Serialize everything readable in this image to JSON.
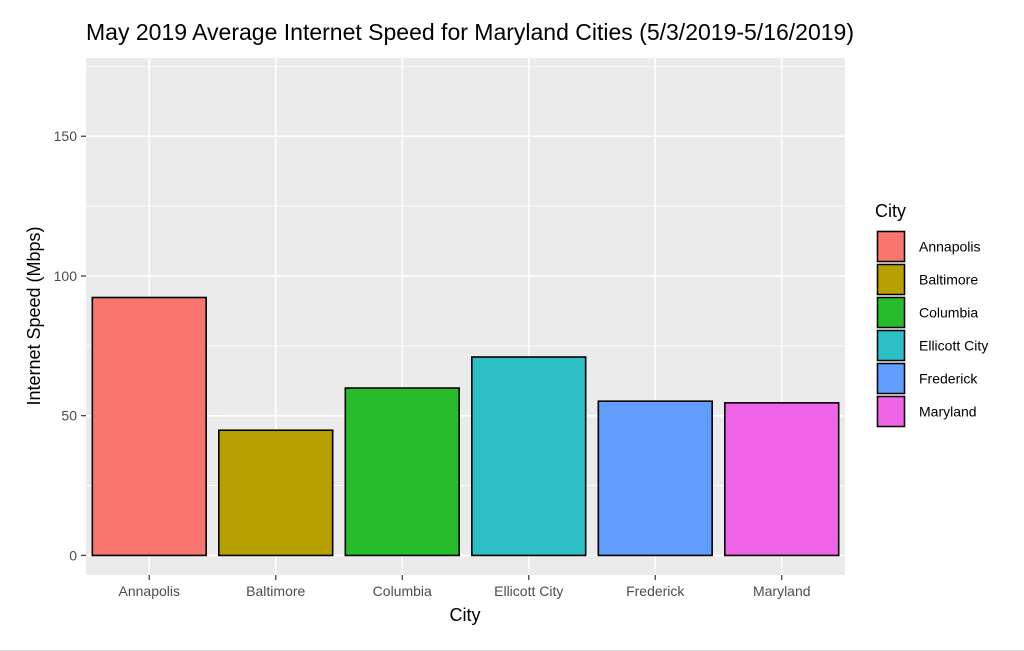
{
  "chart_data": {
    "type": "bar",
    "title": "May 2019 Average Internet Speed for Maryland Cities (5/3/2019-5/16/2019)",
    "xlabel": "City",
    "ylabel": "Internet Speed (Mbps)",
    "categories": [
      "Annapolis",
      "Baltimore",
      "Columbia",
      "Ellicott City",
      "Frederick",
      "Maryland"
    ],
    "values": [
      92.3,
      44.8,
      59.9,
      71.0,
      55.2,
      54.6
    ],
    "colors": [
      "#F8766D",
      "#B79F00",
      "#27BD2A",
      "#2CBFC6",
      "#619CFF",
      "#F064E8"
    ],
    "ylim": [
      -7,
      178
    ],
    "yticks": [
      0,
      50,
      100,
      150
    ],
    "grid": true,
    "legend": {
      "title": "City",
      "position": "right",
      "entries": [
        "Annapolis",
        "Baltimore",
        "Columbia",
        "Ellicott City",
        "Frederick",
        "Maryland"
      ]
    }
  }
}
